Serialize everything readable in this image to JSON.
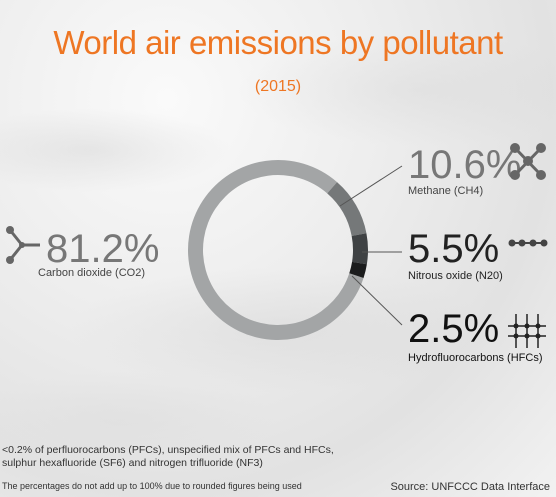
{
  "chart_data": {
    "type": "pie",
    "variant": "donut",
    "title": "World air emissions by pollutant",
    "subtitle": "(2015)",
    "slices": [
      {
        "label": "Carbon dioxide (CO2)",
        "value": 81.2,
        "value_label": "81.2%",
        "color": "#a3a5a6",
        "icon": "branch-molecule-icon"
      },
      {
        "label": "Methane (CH4)",
        "value": 10.6,
        "value_label": "10.6%",
        "color": "#757879",
        "icon": "x-molecule-icon"
      },
      {
        "label": "Nitrous oxide (N20)",
        "value": 5.5,
        "value_label": "5.5%",
        "color": "#3f4244",
        "icon": "chain-molecule-icon"
      },
      {
        "label": "Hydrofluorocarbons (HFCs)",
        "value": 2.5,
        "value_label": "2.5%",
        "color": "#1b1c1d",
        "icon": "grid-molecule-icon"
      }
    ]
  },
  "footnote": "<0.2% of perfluorocarbons (PFCs), unspecified mix of PFCs and HFCs, sulphur hexafluoride (SF6) and nitrogen trifluoride  (NF3)",
  "note": "The percentages do not add up to 100% due to rounded figures being used",
  "source": "Source: UNFCCC Data Interface"
}
